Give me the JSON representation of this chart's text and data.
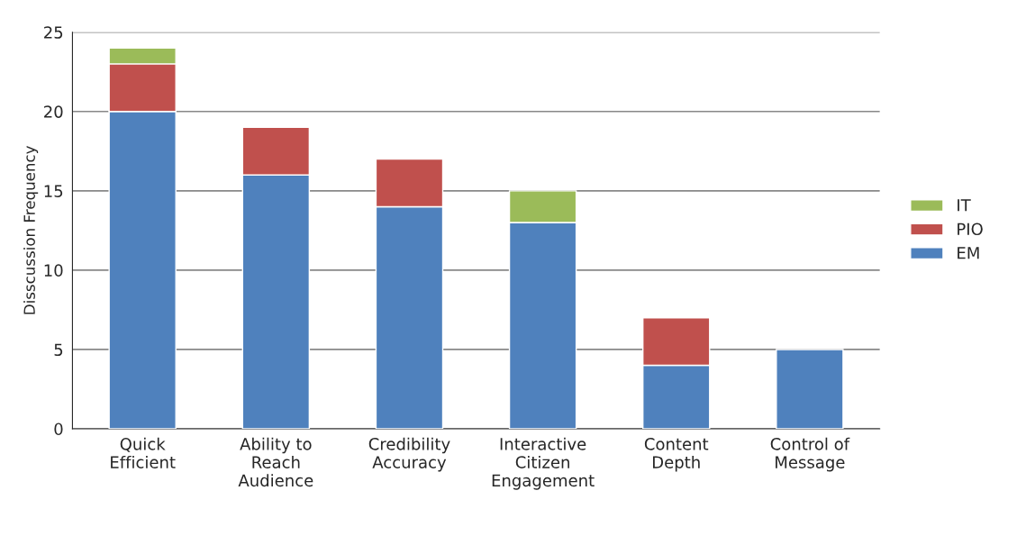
{
  "chart_data": {
    "type": "bar",
    "stacked": true,
    "ylabel": "Disscussion Frequency",
    "categories": [
      "Quick\nEfficient",
      "Ability to\nReach\nAudience",
      "Credibility\nAccuracy",
      "Interactive\nCitizen\nEngagement",
      "Content\nDepth",
      "Control of\nMessage"
    ],
    "series": [
      {
        "name": "EM",
        "color": "#4f81bd",
        "values": [
          20,
          16,
          14,
          13,
          4,
          5
        ]
      },
      {
        "name": "PIO",
        "color": "#c0504d",
        "values": [
          3,
          3,
          3,
          null,
          3,
          null
        ]
      },
      {
        "name": "IT",
        "color": "#9bbb59",
        "values": [
          1,
          null,
          null,
          2,
          null,
          null
        ]
      }
    ],
    "ylim": [
      0,
      25
    ],
    "yticks": [
      0,
      5,
      10,
      15,
      20,
      25
    ],
    "grid": "y",
    "legend": "right"
  }
}
